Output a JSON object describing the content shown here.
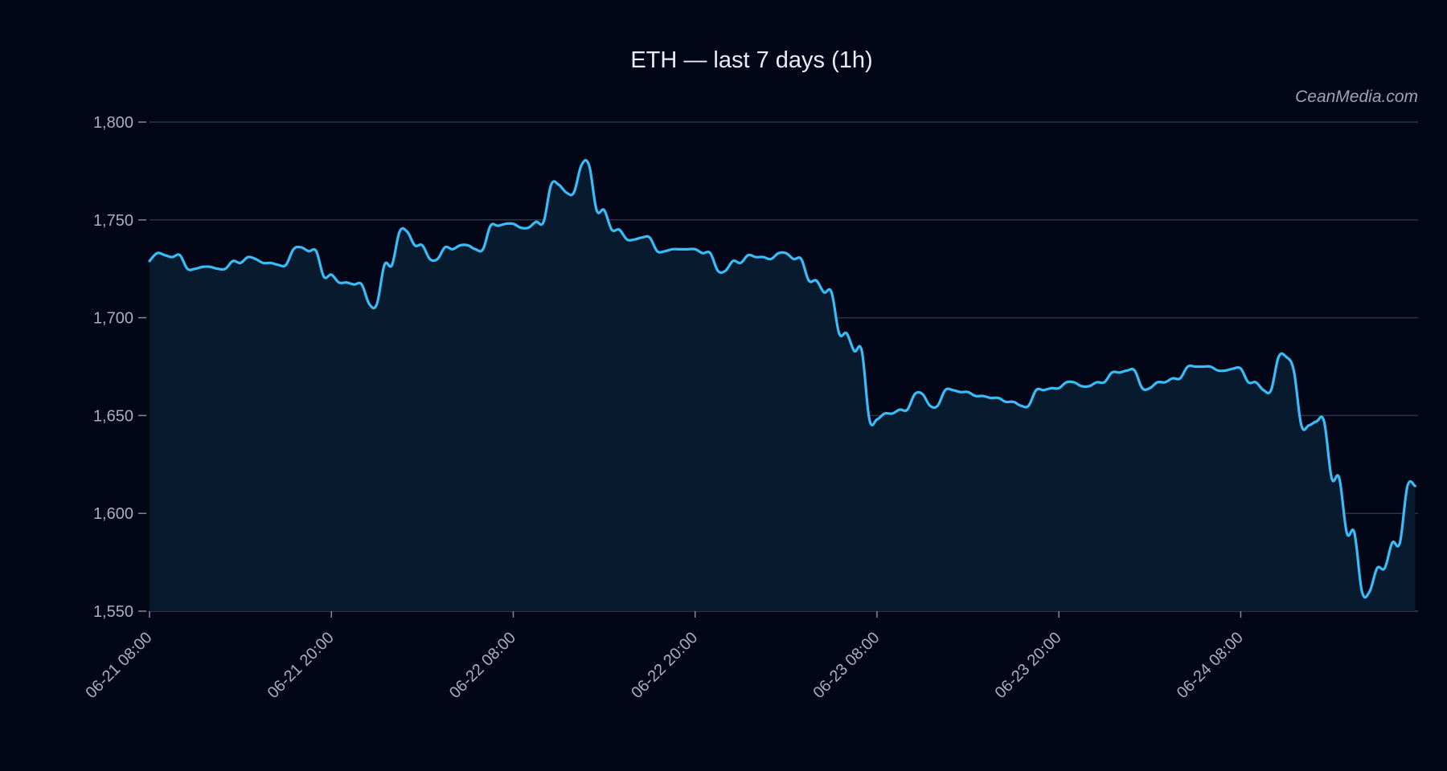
{
  "chart_data": {
    "type": "area",
    "title": "ETH — last 7 days (1h)",
    "watermark": "CeanMedia.com",
    "xlabel": "",
    "ylabel": "",
    "ylim": [
      1550,
      1800
    ],
    "yticks": [
      1550,
      1600,
      1650,
      1700,
      1750,
      1800
    ],
    "ytick_labels": [
      "1,550",
      "1,600",
      "1,650",
      "1,700",
      "1,750",
      "1,800"
    ],
    "xticks": [
      0,
      12,
      24,
      36,
      48,
      60,
      72
    ],
    "xtick_labels": [
      "06-21 08:00",
      "06-21 20:00",
      "06-22 08:00",
      "06-22 20:00",
      "06-23 08:00",
      "06-23 20:00",
      "06-24 08:00"
    ],
    "x_unit": "hours since 06-21 08:00",
    "xlim": [
      0,
      83.7
    ],
    "grid": true,
    "line_color": "#38bdf8",
    "fill_color": "#081a2e",
    "background": "#020617",
    "points": [
      [
        0.0,
        1729
      ],
      [
        0.5,
        1733
      ],
      [
        1.0,
        1732
      ],
      [
        1.5,
        1731
      ],
      [
        2.0,
        1732
      ],
      [
        2.5,
        1725
      ],
      [
        3.0,
        1725
      ],
      [
        3.5,
        1726
      ],
      [
        4.0,
        1726
      ],
      [
        4.5,
        1725
      ],
      [
        5.0,
        1725
      ],
      [
        5.5,
        1729
      ],
      [
        6.0,
        1728
      ],
      [
        6.5,
        1731
      ],
      [
        7.0,
        1730
      ],
      [
        7.5,
        1728
      ],
      [
        8.0,
        1728
      ],
      [
        8.5,
        1727
      ],
      [
        9.0,
        1727
      ],
      [
        9.5,
        1735
      ],
      [
        10.0,
        1736
      ],
      [
        10.5,
        1734
      ],
      [
        11.0,
        1734
      ],
      [
        11.5,
        1721
      ],
      [
        12.0,
        1722
      ],
      [
        12.5,
        1718
      ],
      [
        13.0,
        1718
      ],
      [
        13.5,
        1717
      ],
      [
        14.0,
        1717
      ],
      [
        14.5,
        1707
      ],
      [
        15.0,
        1707
      ],
      [
        15.5,
        1727
      ],
      [
        16.0,
        1727
      ],
      [
        16.5,
        1744
      ],
      [
        17.0,
        1744
      ],
      [
        17.5,
        1737
      ],
      [
        18.0,
        1737
      ],
      [
        18.5,
        1730
      ],
      [
        19.0,
        1730
      ],
      [
        19.5,
        1736
      ],
      [
        20.0,
        1735
      ],
      [
        20.5,
        1737
      ],
      [
        21.0,
        1737
      ],
      [
        21.5,
        1735
      ],
      [
        22.0,
        1735
      ],
      [
        22.5,
        1747
      ],
      [
        23.0,
        1747
      ],
      [
        23.5,
        1748
      ],
      [
        24.0,
        1748
      ],
      [
        24.5,
        1746
      ],
      [
        25.0,
        1746
      ],
      [
        25.5,
        1749
      ],
      [
        26.0,
        1749
      ],
      [
        26.5,
        1768
      ],
      [
        27.0,
        1768
      ],
      [
        27.5,
        1764
      ],
      [
        28.0,
        1764
      ],
      [
        28.5,
        1778
      ],
      [
        29.0,
        1778
      ],
      [
        29.5,
        1755
      ],
      [
        30.0,
        1755
      ],
      [
        30.5,
        1745
      ],
      [
        31.0,
        1745
      ],
      [
        31.5,
        1740
      ],
      [
        32.0,
        1740
      ],
      [
        32.5,
        1741
      ],
      [
        33.0,
        1741
      ],
      [
        33.5,
        1734
      ],
      [
        34.0,
        1734
      ],
      [
        34.5,
        1735
      ],
      [
        35.0,
        1735
      ],
      [
        35.5,
        1735
      ],
      [
        36.0,
        1735
      ],
      [
        36.5,
        1733
      ],
      [
        37.0,
        1733
      ],
      [
        37.5,
        1724
      ],
      [
        38.0,
        1724
      ],
      [
        38.5,
        1729
      ],
      [
        39.0,
        1728
      ],
      [
        39.5,
        1732
      ],
      [
        40.0,
        1731
      ],
      [
        40.5,
        1731
      ],
      [
        41.0,
        1730
      ],
      [
        41.5,
        1733
      ],
      [
        42.0,
        1733
      ],
      [
        42.5,
        1730
      ],
      [
        43.0,
        1730
      ],
      [
        43.5,
        1719
      ],
      [
        44.0,
        1719
      ],
      [
        44.5,
        1713
      ],
      [
        45.0,
        1713
      ],
      [
        45.5,
        1692
      ],
      [
        46.0,
        1692
      ],
      [
        46.5,
        1683
      ],
      [
        47.0,
        1683
      ],
      [
        47.5,
        1648
      ],
      [
        48.0,
        1648
      ],
      [
        48.5,
        1651
      ],
      [
        49.0,
        1651
      ],
      [
        49.5,
        1653
      ],
      [
        50.0,
        1653
      ],
      [
        50.5,
        1661
      ],
      [
        51.0,
        1661
      ],
      [
        51.5,
        1655
      ],
      [
        52.0,
        1655
      ],
      [
        52.5,
        1663
      ],
      [
        53.0,
        1663
      ],
      [
        53.5,
        1662
      ],
      [
        54.0,
        1662
      ],
      [
        54.5,
        1660
      ],
      [
        55.0,
        1660
      ],
      [
        55.5,
        1659
      ],
      [
        56.0,
        1659
      ],
      [
        56.5,
        1657
      ],
      [
        57.0,
        1657
      ],
      [
        57.5,
        1655
      ],
      [
        58.0,
        1655
      ],
      [
        58.5,
        1663
      ],
      [
        59.0,
        1663
      ],
      [
        59.5,
        1664
      ],
      [
        60.0,
        1664
      ],
      [
        60.5,
        1667
      ],
      [
        61.0,
        1667
      ],
      [
        61.5,
        1665
      ],
      [
        62.0,
        1665
      ],
      [
        62.5,
        1667
      ],
      [
        63.0,
        1667
      ],
      [
        63.5,
        1672
      ],
      [
        64.0,
        1672
      ],
      [
        64.5,
        1673
      ],
      [
        65.0,
        1673
      ],
      [
        65.5,
        1664
      ],
      [
        66.0,
        1664
      ],
      [
        66.5,
        1667
      ],
      [
        67.0,
        1667
      ],
      [
        67.5,
        1669
      ],
      [
        68.0,
        1669
      ],
      [
        68.5,
        1675
      ],
      [
        69.0,
        1675
      ],
      [
        69.5,
        1675
      ],
      [
        70.0,
        1675
      ],
      [
        70.5,
        1673
      ],
      [
        71.0,
        1673
      ],
      [
        71.5,
        1674
      ],
      [
        72.0,
        1674
      ],
      [
        72.5,
        1667
      ],
      [
        73.0,
        1667
      ],
      [
        73.5,
        1663
      ],
      [
        74.0,
        1663
      ],
      [
        74.5,
        1680
      ],
      [
        75.0,
        1680
      ],
      [
        75.5,
        1673
      ],
      [
        76.0,
        1645
      ],
      [
        76.5,
        1645
      ],
      [
        77.0,
        1647
      ],
      [
        77.5,
        1647
      ],
      [
        78.0,
        1618
      ],
      [
        78.5,
        1618
      ],
      [
        79.0,
        1590
      ],
      [
        79.5,
        1590
      ],
      [
        80.0,
        1560
      ],
      [
        80.5,
        1560
      ],
      [
        81.0,
        1572
      ],
      [
        81.5,
        1572
      ],
      [
        82.0,
        1585
      ],
      [
        82.5,
        1585
      ],
      [
        83.0,
        1614
      ],
      [
        83.5,
        1614
      ]
    ]
  }
}
